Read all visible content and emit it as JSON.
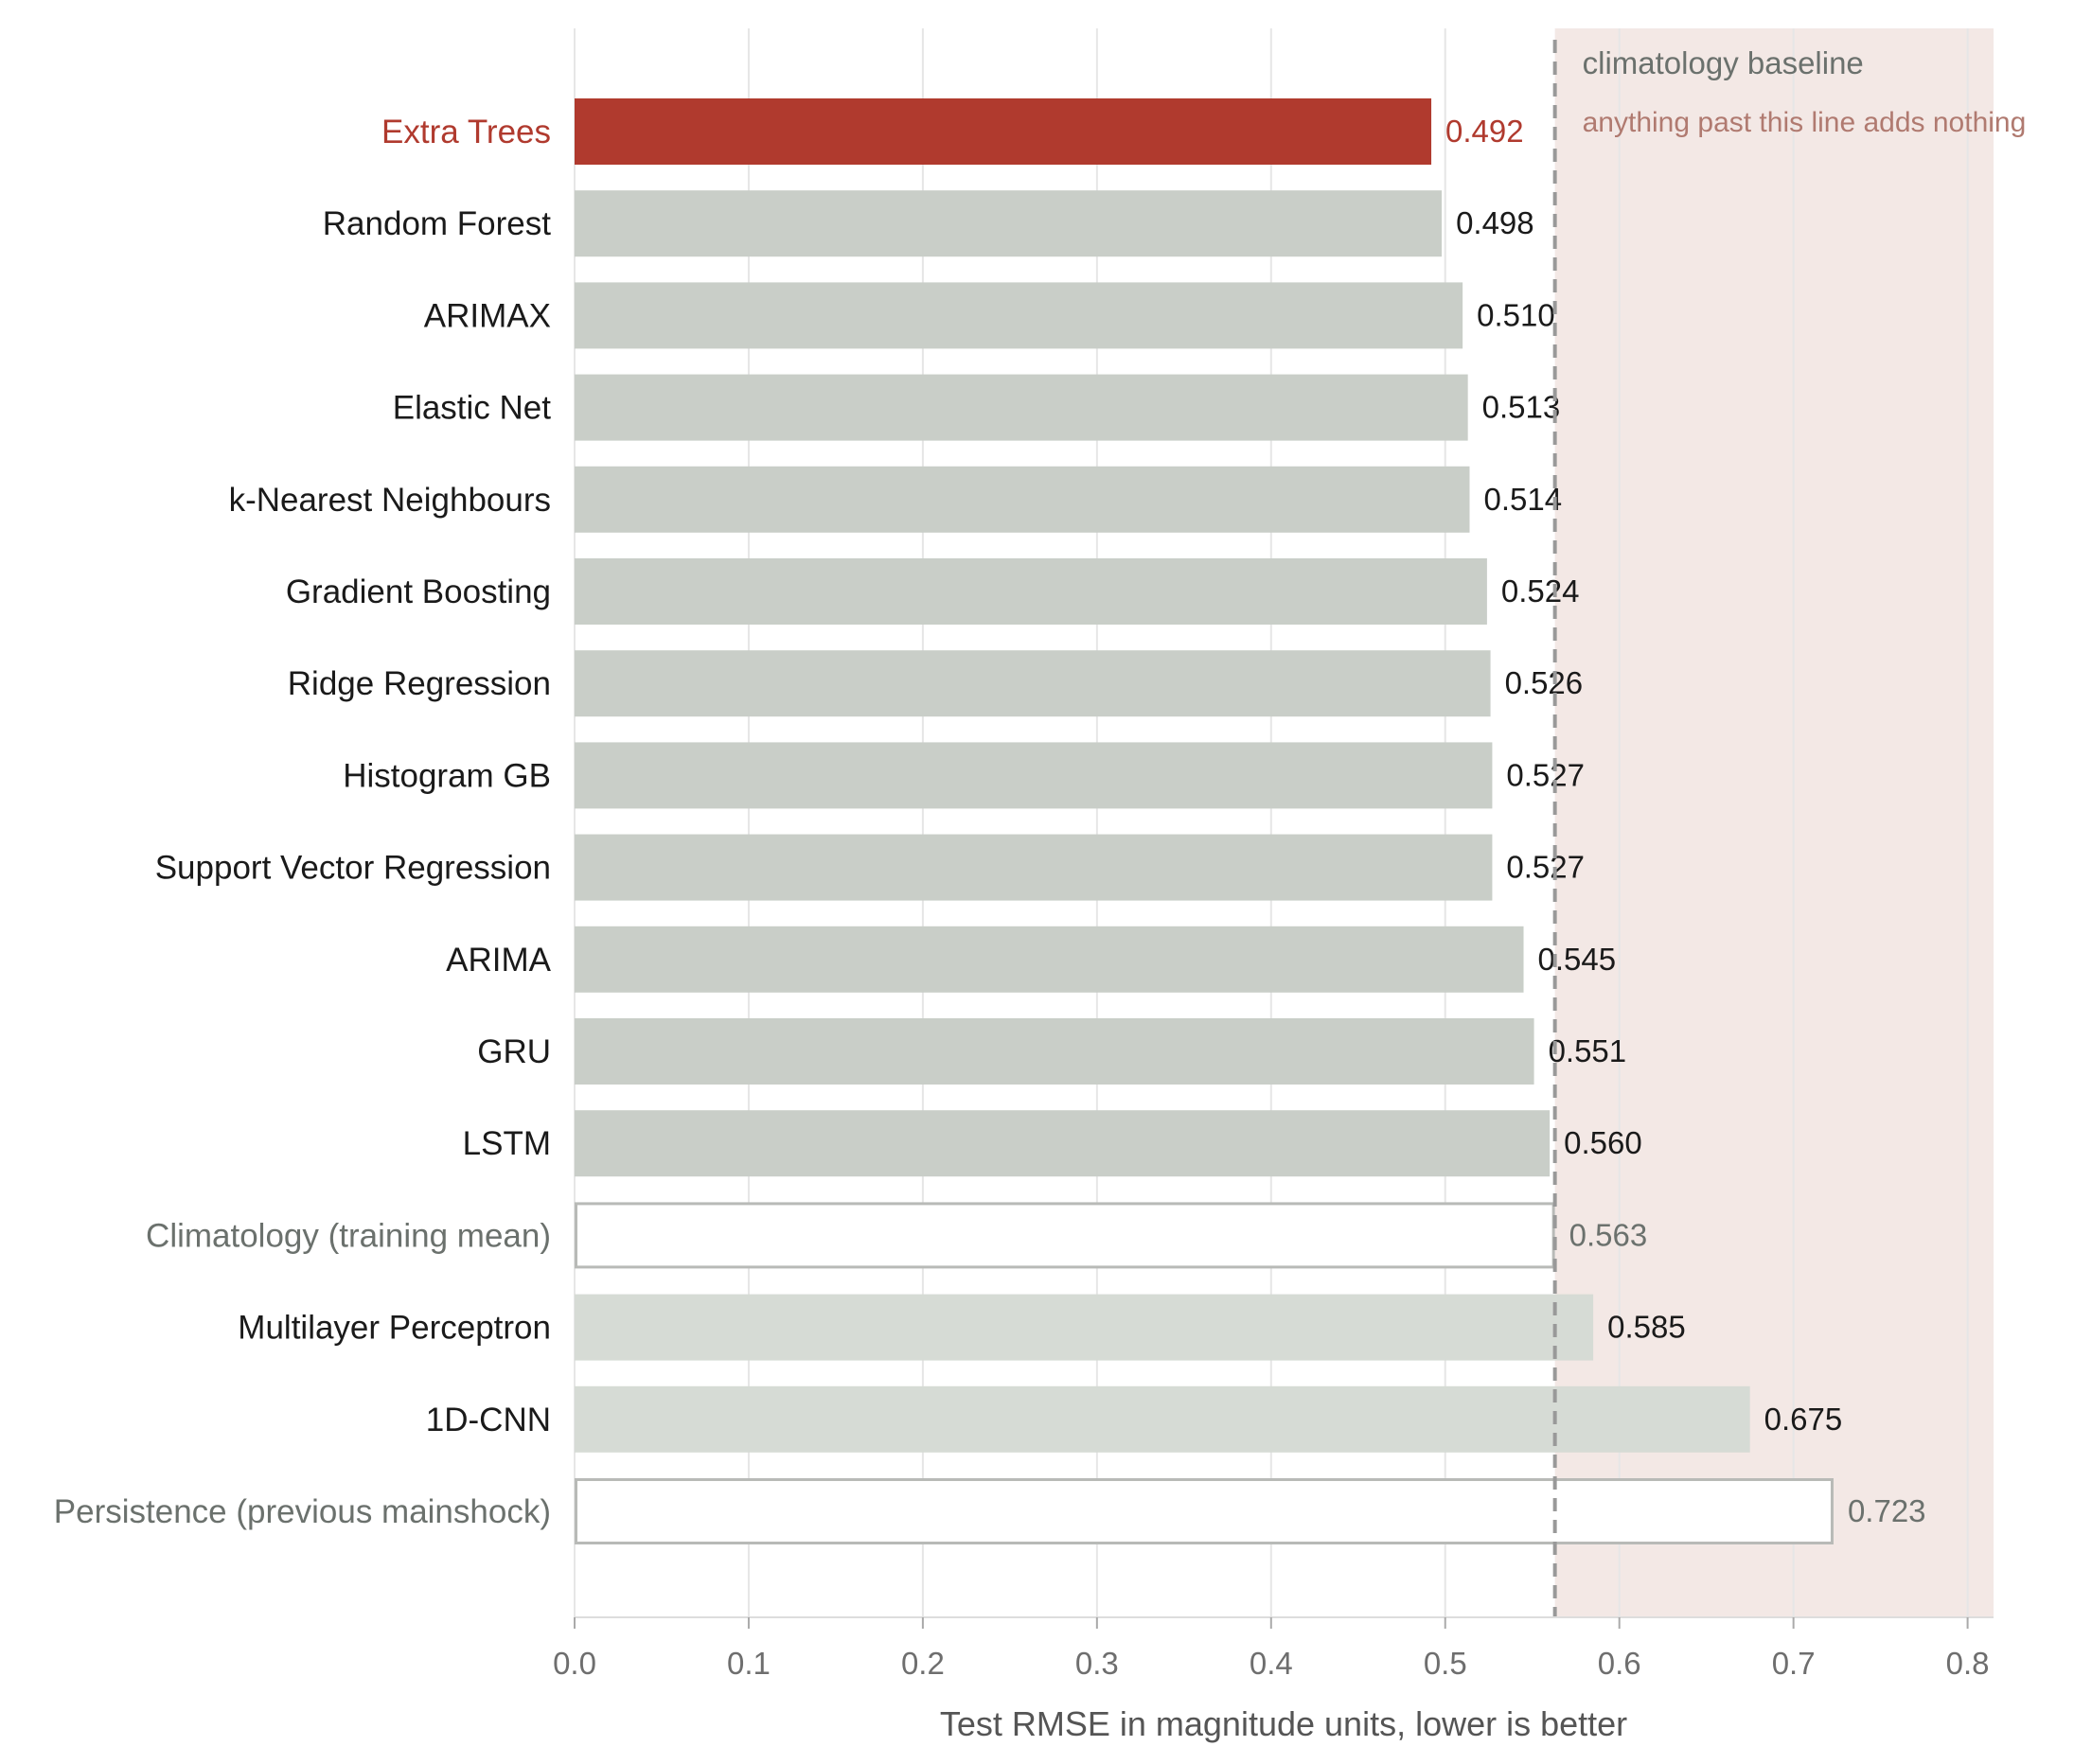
{
  "chart_data": {
    "type": "bar",
    "orientation": "horizontal",
    "title": "",
    "xlabel": "Test RMSE in magnitude units, lower is better",
    "ylabel": "",
    "xlim": [
      0,
      0.82
    ],
    "xticks": [
      "0.0",
      "0.1",
      "0.2",
      "0.3",
      "0.4",
      "0.5",
      "0.6",
      "0.7",
      "0.8"
    ],
    "grid": "vertical",
    "legend": "none",
    "categories": [
      "Extra Trees",
      "Random Forest",
      "ARIMAX",
      "Elastic Net",
      "k-Nearest Neighbours",
      "Gradient Boosting",
      "Ridge Regression",
      "Histogram GB",
      "Support Vector Regression",
      "ARIMA",
      "GRU",
      "LSTM",
      "Climatology (training mean)",
      "Multilayer Perceptron",
      "1D-CNN",
      "Persistence (previous mainshock)"
    ],
    "values": [
      0.492,
      0.498,
      0.51,
      0.513,
      0.514,
      0.524,
      0.526,
      0.527,
      0.527,
      0.545,
      0.551,
      0.56,
      0.563,
      0.585,
      0.675,
      0.723
    ],
    "value_labels": [
      "0.492",
      "0.498",
      "0.510",
      "0.513",
      "0.514",
      "0.524",
      "0.526",
      "0.527",
      "0.527",
      "0.545",
      "0.551",
      "0.560",
      "0.563",
      "0.585",
      "0.675",
      "0.723"
    ],
    "bar_styles": [
      "best",
      "normal",
      "normal",
      "normal",
      "normal",
      "normal",
      "normal",
      "normal",
      "normal",
      "normal",
      "normal",
      "normal",
      "baseline",
      "worse",
      "worse",
      "baseline"
    ],
    "baseline": {
      "value": 0.563,
      "label": "climatology baseline",
      "note": "anything past this line adds nothing"
    },
    "colors": {
      "best": "#b03a2e",
      "normal": "#c9cec8",
      "worse": "#d6dbd5",
      "baseline_fill": "#ffffff",
      "baseline_stroke": "#b8bab7",
      "shade": "#f3e8e5",
      "grid": "#e6e6e6",
      "baseline_line": "#999999",
      "text": "#1a1a1a",
      "muted_text": "#6b716d",
      "note_text": "#b07a70",
      "tick_text": "#6e6e6e"
    }
  }
}
